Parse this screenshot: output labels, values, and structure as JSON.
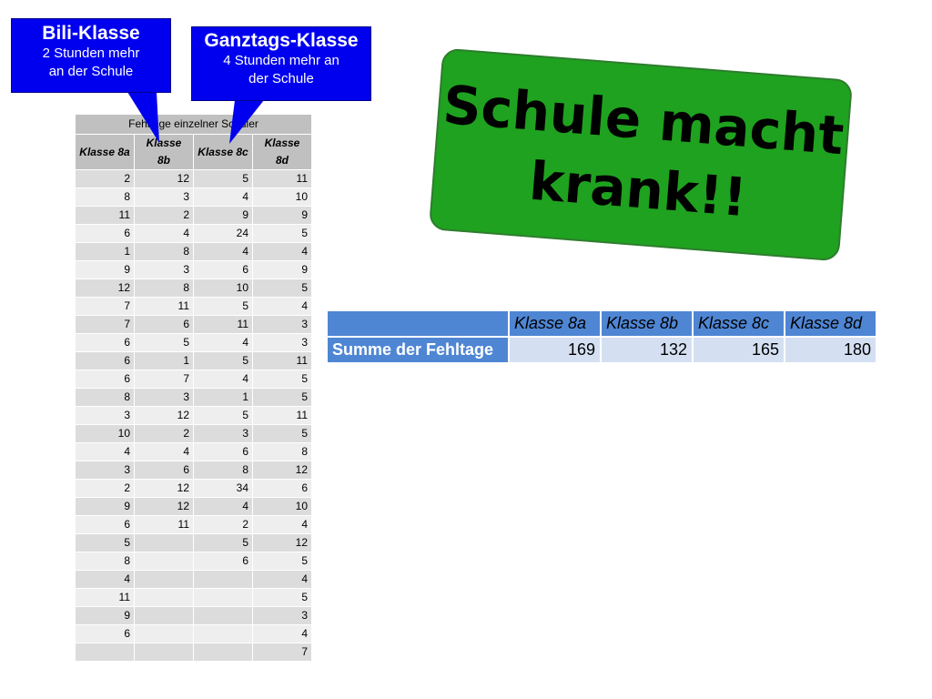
{
  "callouts": {
    "bili": {
      "title": "Bili-Klasse",
      "line1": "2 Stunden mehr",
      "line2": "an der Schule"
    },
    "ganztags": {
      "title": "Ganztags-Klasse",
      "line1": "4 Stunden mehr an",
      "line2": "der Schule"
    }
  },
  "banner": {
    "line1": "Schule macht",
    "line2": "krank!!"
  },
  "absence_table": {
    "title": "Fehltage einzelner Schüler",
    "columns": [
      "Klasse 8a",
      "Klasse 8b",
      "Klasse 8c",
      "Klasse 8d"
    ],
    "rows": [
      [
        "2",
        "12",
        "5",
        "11"
      ],
      [
        "8",
        "3",
        "4",
        "10"
      ],
      [
        "11",
        "2",
        "9",
        "9"
      ],
      [
        "6",
        "4",
        "24",
        "5"
      ],
      [
        "1",
        "8",
        "4",
        "4"
      ],
      [
        "9",
        "3",
        "6",
        "9"
      ],
      [
        "12",
        "8",
        "10",
        "5"
      ],
      [
        "7",
        "11",
        "5",
        "4"
      ],
      [
        "7",
        "6",
        "11",
        "3"
      ],
      [
        "6",
        "5",
        "4",
        "3"
      ],
      [
        "6",
        "1",
        "5",
        "11"
      ],
      [
        "6",
        "7",
        "4",
        "5"
      ],
      [
        "8",
        "3",
        "1",
        "5"
      ],
      [
        "3",
        "12",
        "5",
        "11"
      ],
      [
        "10",
        "2",
        "3",
        "5"
      ],
      [
        "4",
        "4",
        "6",
        "8"
      ],
      [
        "3",
        "6",
        "8",
        "12"
      ],
      [
        "2",
        "12",
        "34",
        "6"
      ],
      [
        "9",
        "12",
        "4",
        "10"
      ],
      [
        "6",
        "11",
        "2",
        "4"
      ],
      [
        "5",
        "",
        "5",
        "12"
      ],
      [
        "8",
        "",
        "6",
        "5"
      ],
      [
        "4",
        "",
        "",
        "4"
      ],
      [
        "11",
        "",
        "",
        "5"
      ],
      [
        "9",
        "",
        "",
        "3"
      ],
      [
        "6",
        "",
        "",
        "4"
      ],
      [
        "",
        "",
        "",
        "7"
      ]
    ]
  },
  "summary_table": {
    "columns": [
      "Klasse 8a",
      "Klasse 8b",
      "Klasse 8c",
      "Klasse 8d"
    ],
    "row_label": "Summe der Fehltage",
    "values": [
      "169",
      "132",
      "165",
      "180"
    ]
  },
  "colors": {
    "callout_blue": "#0000ee",
    "banner_green": "#1fa21f",
    "summary_header_blue": "#4f86d4",
    "summary_value_bg": "#d4e0f2"
  }
}
